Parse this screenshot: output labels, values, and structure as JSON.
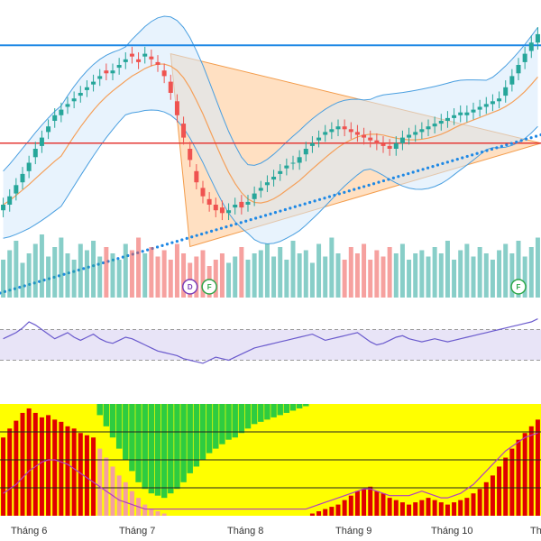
{
  "colors": {
    "up": "#26a69a",
    "down": "#ef5350",
    "resistance": "#1e88e5",
    "support": "#e53935",
    "trend_dots": "#1e88e5",
    "triangle_fill": "#ffcc99",
    "triangle_stroke": "#f39c4b",
    "bollinger": "#4a9fe0",
    "ma": "#f5a05a",
    "rsi_line": "#6a5acd",
    "rsi_band": "#e8e4f7",
    "bottom_yellow": "#ffff00",
    "bottom_green": "#2ecc40",
    "bottom_red": "#e00000",
    "bottom_pink": "#f4a0a0",
    "bottom_line": "#b040c0",
    "markers_purple": "#7b3fb8",
    "markers_green": "#2ea84a"
  },
  "chart_data": {
    "type": "candlestick",
    "x_axis": {
      "month_labels": [
        "Tháng 6",
        "Tháng 7",
        "Tháng 8",
        "Tháng 9",
        "Tháng 10",
        "Th"
      ]
    },
    "price": {
      "ylim": [
        0,
        100
      ],
      "resistance_level": 87,
      "support_level": 52,
      "closes": [
        30,
        33,
        37,
        41,
        45,
        50,
        54,
        58,
        62,
        64,
        66,
        68,
        70,
        72,
        74,
        76,
        77,
        78,
        80,
        82,
        83,
        81,
        84,
        82,
        80,
        76,
        70,
        62,
        54,
        46,
        38,
        33,
        30,
        28,
        27,
        28,
        30,
        29,
        31,
        34,
        36,
        38,
        40,
        42,
        44,
        45,
        47,
        50,
        52,
        54,
        56,
        57,
        58,
        57,
        56,
        55,
        54,
        53,
        52,
        51,
        50,
        52,
        54,
        55,
        56,
        57,
        58,
        59,
        60,
        61,
        62,
        63,
        63,
        64,
        65,
        66,
        67,
        68,
        72,
        76,
        80,
        84,
        88,
        91
      ],
      "opens": [
        28,
        30,
        34,
        38,
        42,
        47,
        51,
        56,
        60,
        62,
        65,
        67,
        69,
        71,
        73,
        75,
        78,
        77,
        79,
        81,
        84,
        82,
        83,
        83,
        81,
        78,
        74,
        67,
        59,
        50,
        42,
        36,
        32,
        30,
        29,
        27,
        29,
        31,
        30,
        32,
        35,
        37,
        39,
        41,
        43,
        45,
        45,
        48,
        51,
        53,
        55,
        56,
        57,
        58,
        57,
        56,
        55,
        54,
        53,
        52,
        51,
        50,
        52,
        54,
        55,
        56,
        57,
        58,
        59,
        60,
        61,
        62,
        62,
        63,
        64,
        65,
        66,
        67,
        69,
        73,
        77,
        81,
        85,
        88
      ]
    },
    "volume": {
      "values": [
        60,
        75,
        90,
        55,
        70,
        85,
        100,
        65,
        80,
        95,
        70,
        60,
        85,
        75,
        90,
        65,
        80,
        70,
        60,
        85,
        75,
        95,
        70,
        80,
        65,
        75,
        60,
        85,
        70,
        55,
        65,
        75,
        50,
        60,
        70,
        55,
        65,
        80,
        60,
        70,
        75,
        85,
        65,
        80,
        60,
        90,
        70,
        75,
        55,
        85,
        65,
        95,
        70,
        60,
        80,
        70,
        85,
        60,
        75,
        65,
        80,
        70,
        85,
        60,
        70,
        75,
        65,
        80,
        70,
        90,
        60,
        75,
        85,
        65,
        80,
        70,
        60,
        75,
        85,
        70,
        90,
        65,
        80,
        95
      ],
      "markers": [
        {
          "label": "D",
          "color": "purple"
        },
        {
          "label": "F",
          "color": "green"
        },
        {
          "label": "F",
          "color": "green"
        }
      ]
    },
    "rsi": {
      "ylim": [
        0,
        100
      ],
      "upper_band": 70,
      "lower_band": 30,
      "values": [
        58,
        62,
        66,
        72,
        80,
        76,
        70,
        64,
        58,
        62,
        66,
        60,
        56,
        60,
        64,
        58,
        54,
        52,
        56,
        60,
        58,
        54,
        50,
        46,
        42,
        40,
        38,
        36,
        32,
        30,
        28,
        26,
        30,
        34,
        32,
        30,
        34,
        38,
        42,
        46,
        48,
        50,
        52,
        54,
        56,
        58,
        60,
        62,
        64,
        60,
        56,
        58,
        60,
        62,
        64,
        66,
        60,
        54,
        50,
        52,
        56,
        60,
        62,
        58,
        56,
        54,
        56,
        58,
        56,
        54,
        56,
        58,
        60,
        62,
        64,
        66,
        68,
        70,
        72,
        74,
        76,
        78,
        80,
        84
      ]
    },
    "bottom_panel": {
      "type": "stacked-bar",
      "red_values": [
        70,
        78,
        85,
        92,
        96,
        92,
        88,
        90,
        86,
        84,
        80,
        78,
        74,
        72,
        70,
        60,
        52,
        44,
        36,
        30,
        22,
        16,
        10,
        6,
        4,
        2,
        0,
        0,
        0,
        0,
        0,
        0,
        0,
        0,
        0,
        0,
        0,
        0,
        0,
        0,
        0,
        0,
        0,
        0,
        0,
        0,
        0,
        0,
        2,
        4,
        6,
        8,
        10,
        14,
        18,
        22,
        24,
        26,
        22,
        20,
        16,
        14,
        12,
        10,
        12,
        14,
        16,
        14,
        12,
        10,
        12,
        14,
        16,
        20,
        24,
        30,
        36,
        44,
        52,
        60,
        68,
        74,
        80,
        86
      ],
      "green_values": [
        0,
        0,
        0,
        0,
        0,
        0,
        0,
        0,
        0,
        0,
        0,
        0,
        0,
        0,
        0,
        10,
        20,
        30,
        40,
        50,
        60,
        70,
        76,
        80,
        82,
        84,
        80,
        76,
        70,
        62,
        56,
        50,
        44,
        40,
        36,
        32,
        30,
        26,
        22,
        18,
        16,
        14,
        12,
        10,
        8,
        6,
        4,
        2,
        0,
        0,
        0,
        0,
        0,
        0,
        0,
        0,
        0,
        0,
        0,
        0,
        0,
        0,
        0,
        0,
        0,
        0,
        0,
        0,
        0,
        0,
        0,
        0,
        0,
        0,
        0,
        0,
        0,
        0,
        0,
        0,
        0,
        0,
        0,
        0
      ],
      "line_values": [
        20,
        24,
        28,
        34,
        40,
        44,
        48,
        50,
        50,
        48,
        46,
        42,
        38,
        34,
        30,
        26,
        22,
        18,
        14,
        12,
        10,
        8,
        6,
        6,
        6,
        6,
        6,
        6,
        6,
        6,
        6,
        6,
        6,
        6,
        6,
        6,
        6,
        6,
        6,
        6,
        6,
        6,
        6,
        6,
        6,
        6,
        6,
        6,
        8,
        10,
        12,
        14,
        16,
        18,
        20,
        22,
        24,
        24,
        22,
        20,
        18,
        18,
        18,
        18,
        20,
        22,
        20,
        18,
        16,
        16,
        18,
        20,
        24,
        28,
        34,
        40,
        46,
        52,
        58,
        62,
        66,
        70,
        72,
        74
      ]
    }
  }
}
